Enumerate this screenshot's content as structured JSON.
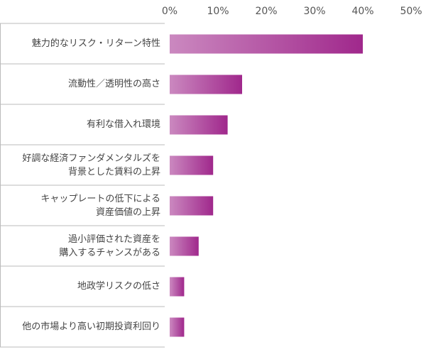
{
  "chart_data": {
    "type": "bar",
    "orientation": "horizontal",
    "categories": [
      "魅力的なリスク・リターン特性",
      "流動性／透明性の高さ",
      "有利な借入れ環境",
      "好調な経済ファンダメンタルズを\n背景とした賃料の上昇",
      "キャップレートの低下による\n資産価値の上昇",
      "過小評価された資産を\n購入するチャンスがある",
      "地政学リスクの低さ",
      "他の市場より高い初期投資利回り"
    ],
    "values": [
      40,
      15,
      12,
      9,
      9,
      6,
      3,
      3
    ],
    "color": "#a0288c",
    "xlim": [
      0,
      50
    ],
    "xticks": [
      {
        "value": 0,
        "label": "0%"
      },
      {
        "value": 10,
        "label": "10%"
      },
      {
        "value": 20,
        "label": "20%"
      },
      {
        "value": 30,
        "label": "30%"
      },
      {
        "value": 40,
        "label": "40%"
      },
      {
        "value": 50,
        "label": "50%"
      }
    ]
  }
}
